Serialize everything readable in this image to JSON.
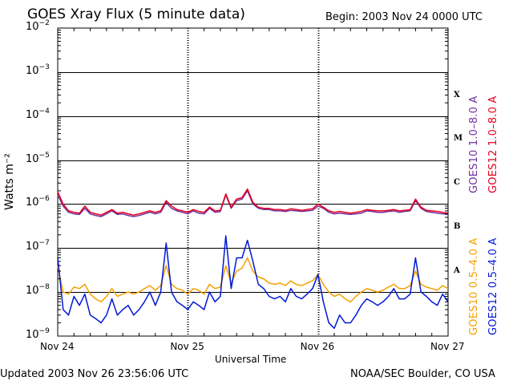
{
  "header": {
    "title": "GOES Xray Flux (5 minute data)",
    "begin": "Begin:  2003 Nov 24 0000 UTC"
  },
  "footer": {
    "updated": "Updated 2003 Nov 26 23:56:06 UTC",
    "credit": "NOAA/SEC Boulder, CO USA"
  },
  "chart_data": {
    "type": "line",
    "title": "GOES Xray Flux (5 minute data)",
    "xlabel": "Universal Time",
    "ylabel": "Watts m⁻²",
    "y_scale": "log",
    "ylim": [
      1e-09,
      0.01
    ],
    "xlim": [
      0,
      72
    ],
    "x_unit": "hours since 2003 Nov 24 0000 UTC",
    "x_tick_values": [
      0,
      24,
      48,
      72
    ],
    "x_tick_labels": [
      "Nov 24",
      "Nov 25",
      "Nov 26",
      "Nov 27"
    ],
    "y_tick_values": [
      0.01,
      0.001,
      0.0001,
      1e-05,
      1e-06,
      1e-07,
      1e-08,
      1e-09
    ],
    "y_tick_labels": [
      {
        "base": "10",
        "exp": "−2"
      },
      {
        "base": "10",
        "exp": "−3"
      },
      {
        "base": "10",
        "exp": "−4"
      },
      {
        "base": "10",
        "exp": "−5"
      },
      {
        "base": "10",
        "exp": "−6"
      },
      {
        "base": "10",
        "exp": "−7"
      },
      {
        "base": "10",
        "exp": "−8"
      },
      {
        "base": "10",
        "exp": "−9"
      }
    ],
    "flare_classes": [
      {
        "label": "X",
        "value": 0.0003
      },
      {
        "label": "M",
        "value": 3e-05
      },
      {
        "label": "C",
        "value": 3e-06
      },
      {
        "label": "B",
        "value": 3e-07
      },
      {
        "label": "A",
        "value": 3e-08
      }
    ],
    "legend_right": [
      {
        "label": "GOES10 1.0–8.0 A",
        "color": "#7030a0"
      },
      {
        "label": "GOES12 1.0–8.0 A",
        "color": "#e8001c"
      }
    ],
    "legend_left": [
      {
        "label": "GOES10 0.5–4.0 A",
        "color": "#f5a000"
      },
      {
        "label": "GOES12 0.5–4.0 A",
        "color": "#0018d8"
      }
    ],
    "series": [
      {
        "name": "GOES10 1.0-8.0 A",
        "color": "#7030a0",
        "x": [
          0,
          1,
          2,
          3,
          4,
          5,
          6,
          7,
          8,
          9,
          10,
          11,
          12,
          13,
          14,
          15,
          16,
          17,
          18,
          19,
          20,
          21,
          22,
          23,
          24,
          25,
          26,
          27,
          28,
          29,
          30,
          31,
          32,
          33,
          34,
          35,
          36,
          37,
          38,
          39,
          40,
          41,
          42,
          43,
          44,
          45,
          46,
          47,
          48,
          49,
          50,
          51,
          52,
          53,
          54,
          55,
          56,
          57,
          58,
          59,
          60,
          61,
          62,
          63,
          64,
          65,
          66,
          67,
          68,
          69,
          70,
          71,
          72
        ],
        "values": [
          1.6e-06,
          9e-07,
          6.5e-07,
          6e-07,
          5.8e-07,
          8e-07,
          6e-07,
          5.5e-07,
          5.2e-07,
          6e-07,
          7e-07,
          5.8e-07,
          6e-07,
          5.5e-07,
          5.2e-07,
          5.5e-07,
          6e-07,
          6.5e-07,
          6e-07,
          6.5e-07,
          1.1e-06,
          8e-07,
          7e-07,
          6.5e-07,
          6e-07,
          7e-07,
          6.2e-07,
          6e-07,
          8e-07,
          6.5e-07,
          6.8e-07,
          1.6e-06,
          8e-07,
          1.2e-06,
          1.3e-06,
          2e-06,
          1e-06,
          8e-07,
          7.5e-07,
          7.5e-07,
          7e-07,
          7e-07,
          6.8e-07,
          7.2e-07,
          7e-07,
          6.8e-07,
          7e-07,
          7.2e-07,
          9e-07,
          8e-07,
          6.5e-07,
          6e-07,
          6.2e-07,
          6e-07,
          5.8e-07,
          6e-07,
          6.2e-07,
          7e-07,
          6.8e-07,
          6.5e-07,
          6.5e-07,
          6.8e-07,
          7e-07,
          6.5e-07,
          6.8e-07,
          7e-07,
          1.2e-06,
          8e-07,
          6.8e-07,
          6.5e-07,
          6.2e-07,
          6e-07,
          5.8e-07
        ]
      },
      {
        "name": "GOES12 1.0-8.0 A",
        "color": "#e8001c",
        "x": [
          0,
          1,
          2,
          3,
          4,
          5,
          6,
          7,
          8,
          9,
          10,
          11,
          12,
          13,
          14,
          15,
          16,
          17,
          18,
          19,
          20,
          21,
          22,
          23,
          24,
          25,
          26,
          27,
          28,
          29,
          30,
          31,
          32,
          33,
          34,
          35,
          36,
          37,
          38,
          39,
          40,
          41,
          42,
          43,
          44,
          45,
          46,
          47,
          48,
          49,
          50,
          51,
          52,
          53,
          54,
          55,
          56,
          57,
          58,
          59,
          60,
          61,
          62,
          63,
          64,
          65,
          66,
          67,
          68,
          69,
          70,
          71,
          72
        ],
        "values": [
          1.9e-06,
          1e-06,
          7e-07,
          6.5e-07,
          6.2e-07,
          9e-07,
          6.5e-07,
          6e-07,
          5.6e-07,
          6.5e-07,
          7.5e-07,
          6.2e-07,
          6.5e-07,
          6e-07,
          5.6e-07,
          6e-07,
          6.5e-07,
          7e-07,
          6.5e-07,
          7e-07,
          1.2e-06,
          9e-07,
          7.5e-07,
          7e-07,
          6.5e-07,
          7.5e-07,
          6.8e-07,
          6.5e-07,
          8.5e-07,
          7e-07,
          7.2e-07,
          1.7e-06,
          8.5e-07,
          1.3e-06,
          1.4e-06,
          2.2e-06,
          1.1e-06,
          8.5e-07,
          8e-07,
          8e-07,
          7.5e-07,
          7.5e-07,
          7.2e-07,
          7.8e-07,
          7.5e-07,
          7.2e-07,
          7.5e-07,
          7.8e-07,
          1e-06,
          8.5e-07,
          7e-07,
          6.5e-07,
          6.8e-07,
          6.5e-07,
          6.2e-07,
          6.5e-07,
          6.8e-07,
          7.5e-07,
          7.2e-07,
          7e-07,
          7e-07,
          7.2e-07,
          7.5e-07,
          7e-07,
          7.2e-07,
          7.5e-07,
          1.3e-06,
          8.5e-07,
          7.2e-07,
          7e-07,
          6.8e-07,
          6.5e-07,
          6.2e-07
        ]
      },
      {
        "name": "GOES10 0.5-4.0 A",
        "color": "#f5a000",
        "x": [
          0,
          1,
          2,
          3,
          4,
          5,
          6,
          7,
          8,
          9,
          10,
          11,
          12,
          13,
          14,
          15,
          16,
          17,
          18,
          19,
          20,
          21,
          22,
          23,
          24,
          25,
          26,
          27,
          28,
          29,
          30,
          31,
          32,
          33,
          34,
          35,
          36,
          37,
          38,
          39,
          40,
          41,
          42,
          43,
          44,
          45,
          46,
          47,
          48,
          49,
          50,
          51,
          52,
          53,
          54,
          55,
          56,
          57,
          58,
          59,
          60,
          61,
          62,
          63,
          64,
          65,
          66,
          67,
          68,
          69,
          70,
          71,
          72
        ],
        "values": [
          4e-08,
          1e-08,
          9e-09,
          1.3e-08,
          1.2e-08,
          1.5e-08,
          9e-09,
          7e-09,
          6e-09,
          8e-09,
          1.2e-08,
          8e-09,
          9e-09,
          1e-08,
          9e-09,
          1e-08,
          1.2e-08,
          1.4e-08,
          1.1e-08,
          1.4e-08,
          4e-08,
          1.5e-08,
          1.2e-08,
          1.1e-08,
          9e-09,
          1.2e-08,
          1.1e-08,
          9e-09,
          1.5e-08,
          1.2e-08,
          1.3e-08,
          4e-08,
          1.6e-08,
          3e-08,
          3.5e-08,
          6e-08,
          3e-08,
          2.2e-08,
          2e-08,
          1.6e-08,
          1.5e-08,
          1.6e-08,
          1.4e-08,
          1.8e-08,
          1.5e-08,
          1.4e-08,
          1.6e-08,
          1.8e-08,
          2.5e-08,
          1.5e-08,
          1e-08,
          8e-09,
          9e-09,
          7e-09,
          6e-09,
          8e-09,
          1e-08,
          1.2e-08,
          1.1e-08,
          1e-08,
          1.1e-08,
          1.3e-08,
          1.5e-08,
          1.2e-08,
          1.2e-08,
          1.4e-08,
          3e-08,
          1.5e-08,
          1.3e-08,
          1.2e-08,
          1.1e-08,
          1.4e-08,
          1.2e-08
        ]
      },
      {
        "name": "GOES12 0.5-4.0 A",
        "color": "#0018d8",
        "x": [
          0,
          1,
          2,
          3,
          4,
          5,
          6,
          7,
          8,
          9,
          10,
          11,
          12,
          13,
          14,
          15,
          16,
          17,
          18,
          19,
          20,
          21,
          22,
          23,
          24,
          25,
          26,
          27,
          28,
          29,
          30,
          31,
          32,
          33,
          34,
          35,
          36,
          37,
          38,
          39,
          40,
          41,
          42,
          43,
          44,
          45,
          46,
          47,
          48,
          49,
          50,
          51,
          52,
          53,
          54,
          55,
          56,
          57,
          58,
          59,
          60,
          61,
          62,
          63,
          64,
          65,
          66,
          67,
          68,
          69,
          70,
          71,
          72
        ],
        "values": [
          6e-08,
          4e-09,
          3e-09,
          8e-09,
          5e-09,
          9e-09,
          3e-09,
          2.5e-09,
          2e-09,
          3e-09,
          7e-09,
          3e-09,
          4e-09,
          5e-09,
          3e-09,
          4e-09,
          6e-09,
          1e-08,
          5e-09,
          1e-08,
          1.3e-07,
          1e-08,
          6e-09,
          5e-09,
          4e-09,
          6e-09,
          5e-09,
          4e-09,
          1e-08,
          6e-09,
          8e-09,
          1.9e-07,
          1.2e-08,
          6e-08,
          6e-08,
          1.5e-07,
          5e-08,
          1.5e-08,
          1.2e-08,
          8e-09,
          7e-09,
          8e-09,
          6e-09,
          1.2e-08,
          8e-09,
          7e-09,
          9e-09,
          1.2e-08,
          2.5e-08,
          6e-09,
          2e-09,
          1.5e-09,
          3e-09,
          2e-09,
          2e-09,
          3e-09,
          5e-09,
          7e-09,
          6e-09,
          5e-09,
          6e-09,
          8e-09,
          1.2e-08,
          7e-09,
          7e-09,
          9e-09,
          6e-08,
          1e-08,
          8e-09,
          6e-09,
          5e-09,
          9e-09,
          6e-09
        ]
      }
    ]
  }
}
